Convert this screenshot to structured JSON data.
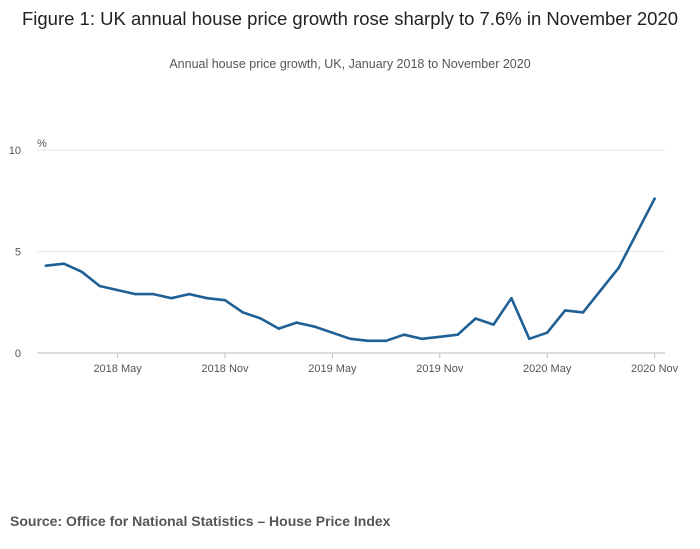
{
  "title": "Figure 1: UK annual house price growth rose sharply to 7.6% in November 2020",
  "subtitle": "Annual house price growth, UK, January 2018 to November 2020",
  "source": "Source: Office for National Statistics – House Price Index",
  "chart_data": {
    "type": "line",
    "title": "Figure 1: UK annual house price growth rose sharply to 7.6% in November 2020",
    "subtitle": "Annual house price growth, UK, January 2018 to November 2020",
    "ylabel": "%",
    "xlabel": "",
    "ylim": [
      0,
      10
    ],
    "y_ticks": [
      "0",
      "5",
      "10"
    ],
    "x_ticks": [
      "2018 May",
      "2018 Nov",
      "2019 May",
      "2019 Nov",
      "2020 May",
      "2020 Nov"
    ],
    "grid": true,
    "line_color": "#206095",
    "x": [
      "2018 Jan",
      "2018 Feb",
      "2018 Mar",
      "2018 Apr",
      "2018 May",
      "2018 Jun",
      "2018 Jul",
      "2018 Aug",
      "2018 Sep",
      "2018 Oct",
      "2018 Nov",
      "2018 Dec",
      "2019 Jan",
      "2019 Feb",
      "2019 Mar",
      "2019 Apr",
      "2019 May",
      "2019 Jun",
      "2019 Jul",
      "2019 Aug",
      "2019 Sep",
      "2019 Oct",
      "2019 Nov",
      "2019 Dec",
      "2020 Jan",
      "2020 Feb",
      "2020 Mar",
      "2020 Apr",
      "2020 May",
      "2020 Jun",
      "2020 Jul",
      "2020 Aug",
      "2020 Sep",
      "2020 Oct",
      "2020 Nov"
    ],
    "series": [
      {
        "values": [
          4.3,
          4.4,
          4.0,
          3.3,
          3.1,
          2.9,
          2.9,
          2.7,
          2.9,
          2.7,
          2.6,
          2.0,
          1.7,
          1.2,
          1.5,
          1.3,
          1.0,
          0.7,
          0.6,
          0.6,
          0.9,
          0.7,
          0.8,
          0.9,
          1.7,
          1.4,
          2.7,
          0.7,
          1.0,
          2.1,
          2.0,
          3.1,
          4.2,
          5.9,
          7.6
        ]
      }
    ]
  }
}
